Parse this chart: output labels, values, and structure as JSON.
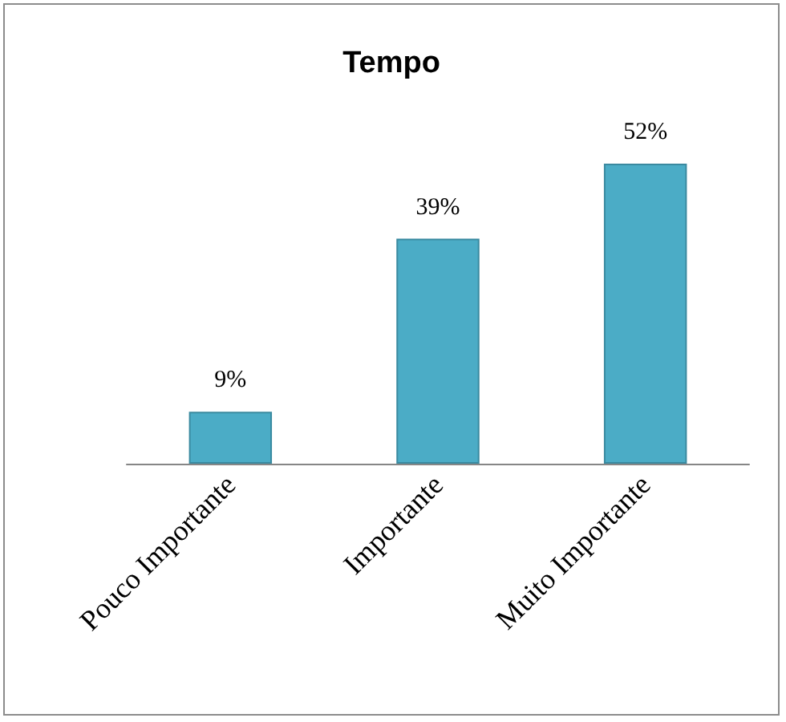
{
  "chart_data": {
    "type": "bar",
    "title": "Tempo",
    "categories": [
      "Pouco Importante",
      "Importante",
      "Muito Importante"
    ],
    "values": [
      9,
      39,
      52
    ],
    "color": "#4bacc6",
    "value_labels": [
      "9%",
      "39%",
      "52%"
    ]
  }
}
